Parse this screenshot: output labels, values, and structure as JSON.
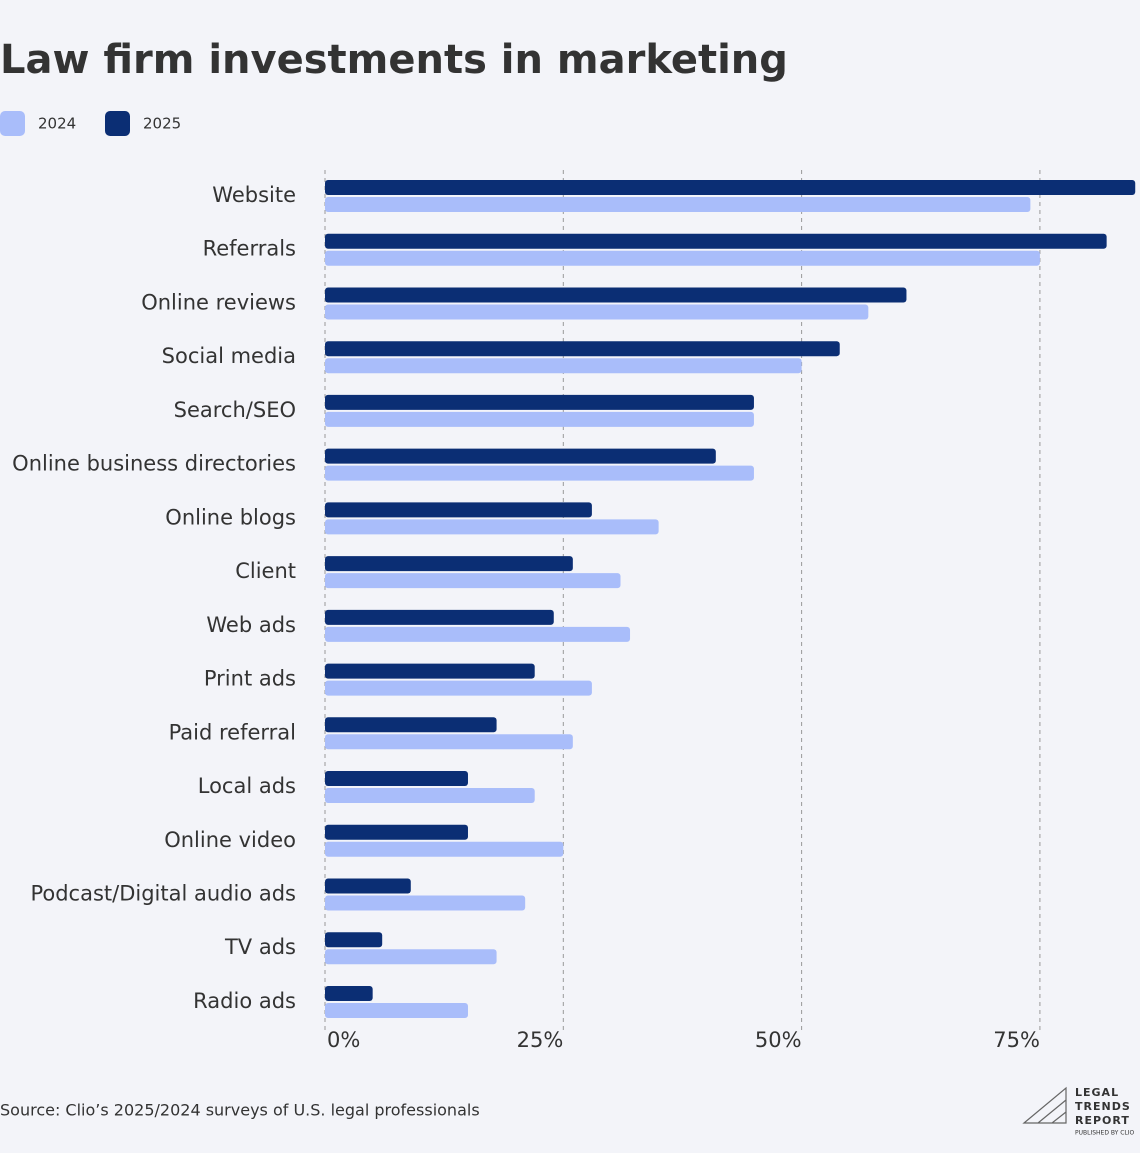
{
  "chart_data": {
    "type": "hbar",
    "title": "Law firm investments in marketing",
    "categories": [
      "Website",
      "Referrals",
      "Online reviews",
      "Social media",
      "Search/SEO",
      "Online business directories",
      "Online blogs",
      "Client",
      "Web ads",
      "Print ads",
      "Paid referral",
      "Local ads",
      "Online video",
      "Podcast/Digital audio ads",
      "TV ads",
      "Radio ads"
    ],
    "series": [
      {
        "name": "2024",
        "color": "#a9bdfa",
        "values": [
          74,
          75,
          57,
          50,
          45,
          45,
          35,
          31,
          32,
          28,
          26,
          22,
          25,
          21,
          18,
          15
        ]
      },
      {
        "name": "2025",
        "color": "#0b2e74",
        "values": [
          85,
          82,
          61,
          54,
          45,
          41,
          28,
          26,
          24,
          22,
          18,
          15,
          15,
          9,
          6,
          5
        ]
      }
    ],
    "xlim": [
      0,
      85.5
    ],
    "xticks": [
      {
        "value": 0,
        "label": "0%"
      },
      {
        "value": 25,
        "label": "25%"
      },
      {
        "value": 50,
        "label": "50%"
      },
      {
        "value": 75,
        "label": "75%"
      }
    ],
    "grid": true,
    "legend": "top-left",
    "source": "Source: Clio’s 2025/2024 surveys of U.S. legal professionals"
  },
  "logo": {
    "lines": [
      "LEGAL",
      "TRENDS",
      "REPORT"
    ],
    "tagline": "PUBLISHED BY CLIO"
  }
}
